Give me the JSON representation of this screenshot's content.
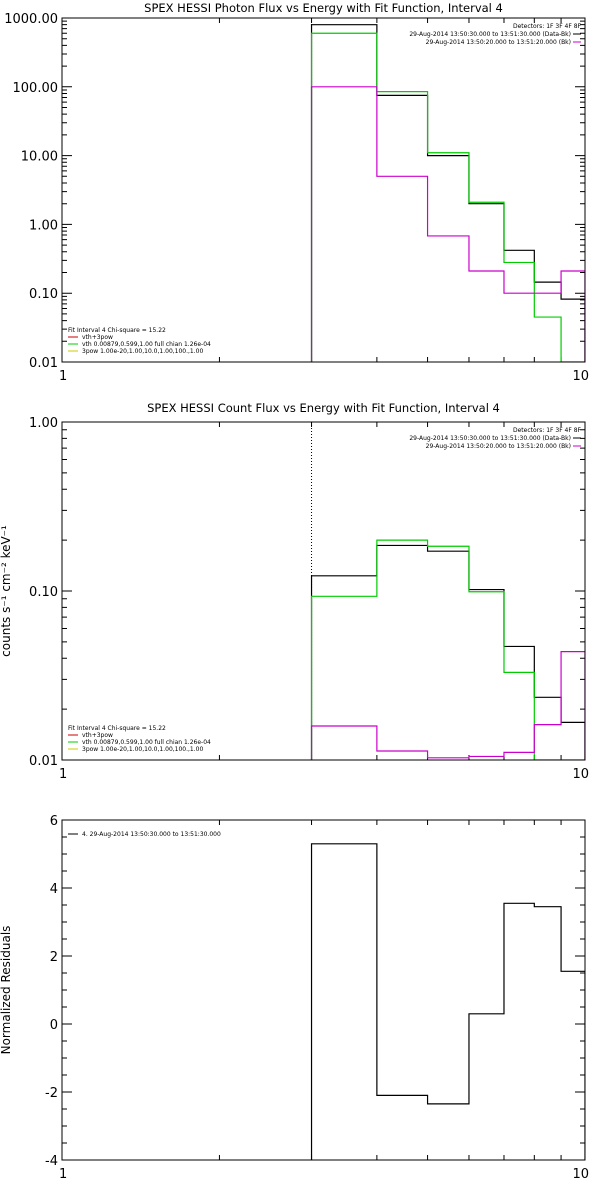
{
  "chart_data": [
    {
      "type": "line",
      "title": "SPEX HESSI Photon Flux vs Energy with Fit Function, Interval 4",
      "xlabel": "",
      "ylabel": "",
      "xscale": "log",
      "yscale": "log",
      "xlim": [
        1,
        10
      ],
      "ylim": [
        0.01,
        1000
      ],
      "xticks": [
        {
          "v": 1,
          "label": "1"
        },
        {
          "v": 10,
          "label": "10"
        }
      ],
      "yticks": [
        {
          "v": 1000,
          "label": "1000.00"
        },
        {
          "v": 100,
          "label": "100.00"
        },
        {
          "v": 10,
          "label": "10.00"
        },
        {
          "v": 1,
          "label": "1.00"
        },
        {
          "v": 0.1,
          "label": "0.10"
        },
        {
          "v": 0.01,
          "label": "0.01"
        }
      ],
      "vline_x": 3.0,
      "legend_right": {
        "lines": [
          {
            "text": "Detectors: 1F 3F 4F 8F",
            "color": ""
          },
          {
            "text": "29-Aug-2014 13:50:30.000 to 13:51:30.000 (Data-Bk)",
            "color": "#000000"
          },
          {
            "text": "29-Aug-2014 13:50:20.000 to 13:51:20.000 (Bk)",
            "color": "#cc00cc"
          }
        ]
      },
      "legend_left": {
        "lines": [
          {
            "text": "Fit Interval  4    Chi-square = 15.22",
            "color": ""
          },
          {
            "text": "vth+3pow",
            "color": "#cc0000"
          },
          {
            "text": "vth  0.00879,0.599,1.00   full chian 1.26e-04",
            "color": "#00cc00"
          },
          {
            "text": "3pow  1.00e-20,1.00,10.0,1.00,100.,1.00",
            "color": "#cccc00"
          }
        ]
      },
      "series": [
        {
          "color": "#000000",
          "edges": [
            3,
            4,
            5,
            6,
            7,
            8,
            9,
            10
          ],
          "values": [
            800,
            75,
            10,
            2.0,
            0.42,
            0.145,
            0.082
          ]
        },
        {
          "color": "#00cc00",
          "edges": [
            3,
            4,
            5,
            6,
            7,
            8,
            9,
            10
          ],
          "values": [
            600,
            85,
            11,
            2.1,
            0.28,
            0.045,
            0.008
          ]
        },
        {
          "color": "#cc00cc",
          "edges": [
            3,
            4,
            5,
            6,
            7,
            8,
            9,
            10
          ],
          "values": [
            100,
            5.0,
            0.68,
            0.21,
            0.1,
            0.1,
            0.21
          ]
        }
      ]
    },
    {
      "type": "line",
      "title": "SPEX HESSI Count Flux vs Energy with Fit Function, Interval 4",
      "xlabel": "",
      "ylabel": "counts s⁻¹ cm⁻² keV⁻¹",
      "xscale": "log",
      "yscale": "log",
      "xlim": [
        1,
        10
      ],
      "ylim": [
        0.01,
        1
      ],
      "xticks": [
        {
          "v": 1,
          "label": "1"
        },
        {
          "v": 10,
          "label": "10"
        }
      ],
      "yticks": [
        {
          "v": 1,
          "label": "1.00"
        },
        {
          "v": 0.1,
          "label": "0.10"
        },
        {
          "v": 0.01,
          "label": "0.01"
        }
      ],
      "vline_x": 3.0,
      "legend_right": {
        "lines": [
          {
            "text": "Detectors: 1F 3F 4F 8F",
            "color": ""
          },
          {
            "text": "29-Aug-2014 13:50:30.000 to 13:51:30.000 (Data-Bk)",
            "color": "#000000"
          },
          {
            "text": "29-Aug-2014 13:50:20.000 to 13:51:20.000 (Bk)",
            "color": "#cc00cc"
          }
        ]
      },
      "legend_left": {
        "lines": [
          {
            "text": "Fit Interval  4    Chi-square = 15.22",
            "color": ""
          },
          {
            "text": "vth+3pow",
            "color": "#cc0000"
          },
          {
            "text": "vth  0.00879,0.599,1.00   full chian 1.26e-04",
            "color": "#00cc00"
          },
          {
            "text": "3pow  1.00e-20,1.00,10.0,1.00,100.,1.00",
            "color": "#cccc00"
          }
        ]
      },
      "series": [
        {
          "color": "#000000",
          "edges": [
            3,
            4,
            5,
            6,
            7,
            8,
            9,
            10
          ],
          "values": [
            0.123,
            0.186,
            0.172,
            0.102,
            0.047,
            0.0235,
            0.0167
          ]
        },
        {
          "color": "#00cc00",
          "edges": [
            3,
            4,
            5,
            6,
            7,
            8,
            9,
            10
          ],
          "values": [
            0.093,
            0.2,
            0.184,
            0.099,
            0.033,
            0.01,
            0.01
          ]
        },
        {
          "color": "#cc00cc",
          "edges": [
            3,
            4,
            5,
            6,
            7,
            8,
            9,
            10
          ],
          "values": [
            0.0159,
            0.0113,
            0.0103,
            0.0105,
            0.0111,
            0.0162,
            0.0438
          ]
        }
      ]
    },
    {
      "type": "line",
      "title": "",
      "xlabel": "",
      "ylabel": "Normalized Residuals",
      "xscale": "log",
      "yscale": "linear",
      "xlim": [
        1,
        10
      ],
      "ylim": [
        -4,
        6
      ],
      "xticks": [
        {
          "v": 1,
          "label": "1"
        },
        {
          "v": 10,
          "label": "10"
        }
      ],
      "yticks": [
        {
          "v": 6,
          "label": "6"
        },
        {
          "v": 4,
          "label": "4"
        },
        {
          "v": 2,
          "label": "2"
        },
        {
          "v": 0,
          "label": "0"
        },
        {
          "v": -2,
          "label": "-2"
        },
        {
          "v": -4,
          "label": "-4"
        }
      ],
      "legend_left": {
        "lines": [
          {
            "text": "4. 29-Aug-2014 13:50:30.000 to 13:51:30.000",
            "color": "#000000"
          }
        ]
      },
      "series": [
        {
          "color": "#000000",
          "edges": [
            3,
            4,
            5,
            6,
            7,
            8,
            9,
            10
          ],
          "values": [
            5.3,
            -2.1,
            -2.35,
            0.3,
            3.55,
            3.45,
            1.55
          ]
        }
      ]
    }
  ]
}
